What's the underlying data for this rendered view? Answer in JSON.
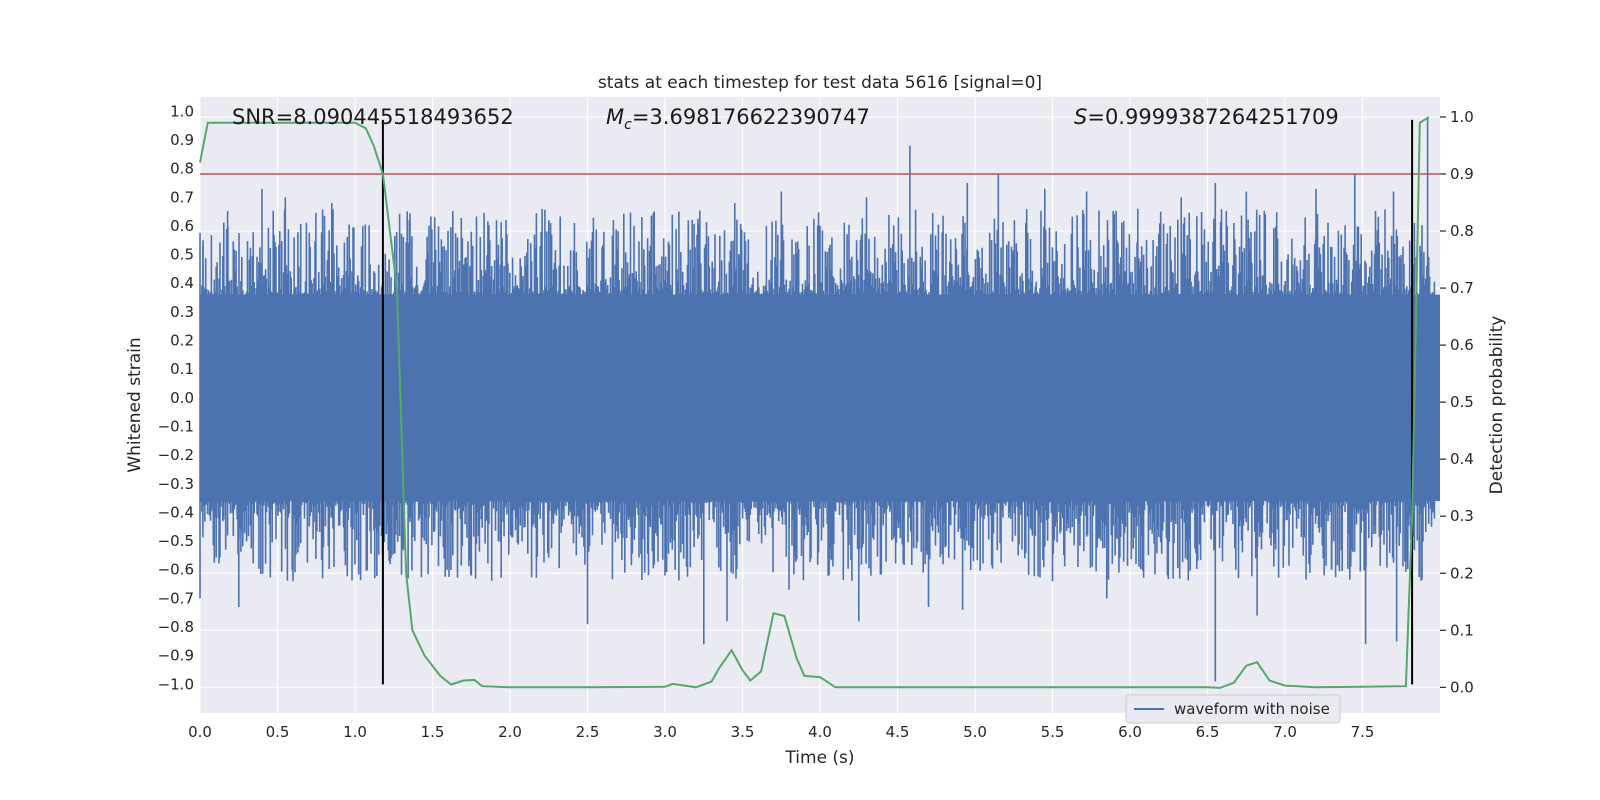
{
  "chart_data": {
    "type": "line",
    "title": "stats at each timestep for test data 5616 [signal=0]",
    "xlabel": "Time (s)",
    "ylabel": "Whitened strain",
    "y2label": "Detection probability",
    "xlim": [
      0.0,
      8.0
    ],
    "ylim": [
      -1.1,
      1.05
    ],
    "y2lim": [
      -0.045,
      1.035
    ],
    "xticks": [
      "0.0",
      "0.5",
      "1.0",
      "1.5",
      "2.0",
      "2.5",
      "3.0",
      "3.5",
      "4.0",
      "4.5",
      "5.0",
      "5.5",
      "6.0",
      "6.5",
      "7.0",
      "7.5"
    ],
    "yticks": [
      "1.0",
      "0.9",
      "0.8",
      "0.7",
      "0.6",
      "0.5",
      "0.4",
      "0.3",
      "0.2",
      "0.1",
      "0.0",
      "−0.1",
      "−0.2",
      "−0.3",
      "−0.4",
      "−0.5",
      "−0.6",
      "−0.7",
      "−0.8",
      "−0.9",
      "−1.0"
    ],
    "y2ticks": [
      "1.0",
      "0.9",
      "0.8",
      "0.7",
      "0.6",
      "0.5",
      "0.4",
      "0.3",
      "0.2",
      "0.1",
      "0.0"
    ],
    "annotations": {
      "snr": "SNR=8.090445518493652",
      "mc_symbol": "M",
      "mc_sub": "c",
      "mc_value": "=3.698176622390747",
      "s_symbol": "S",
      "s_value": "=0.9999387264251709"
    },
    "threshold": {
      "value": 0.9,
      "axis": "right",
      "color": "#c44e52"
    },
    "vlines": {
      "x": [
        1.18,
        7.82
      ],
      "ymin": -1.0,
      "ymax": 0.97,
      "color": "#000000"
    },
    "waveform": {
      "name": "waveform with noise",
      "color": "#4c72b0",
      "band_abs": 0.36,
      "upper_peaks": [
        [
          0.02,
          0.55
        ],
        [
          0.18,
          0.6
        ],
        [
          0.4,
          0.73
        ],
        [
          0.55,
          0.7
        ],
        [
          0.85,
          0.68
        ],
        [
          1.05,
          0.6
        ],
        [
          1.35,
          0.62
        ],
        [
          1.75,
          0.58
        ],
        [
          2.25,
          0.62
        ],
        [
          2.8,
          0.6
        ],
        [
          3.15,
          0.62
        ],
        [
          3.45,
          0.68
        ],
        [
          3.75,
          0.72
        ],
        [
          4.0,
          0.6
        ],
        [
          4.3,
          0.7
        ],
        [
          4.58,
          0.88
        ],
        [
          4.95,
          0.75
        ],
        [
          5.15,
          0.78
        ],
        [
          5.45,
          0.73
        ],
        [
          5.72,
          0.72
        ],
        [
          6.05,
          0.66
        ],
        [
          6.33,
          0.7
        ],
        [
          6.55,
          0.75
        ],
        [
          6.75,
          0.72
        ],
        [
          7.2,
          0.73
        ],
        [
          7.45,
          0.78
        ],
        [
          7.7,
          0.72
        ],
        [
          7.92,
          0.98
        ]
      ],
      "lower_peaks": [
        [
          0.0,
          -0.7
        ],
        [
          0.25,
          -0.73
        ],
        [
          0.6,
          -0.64
        ],
        [
          1.18,
          -0.73
        ],
        [
          1.75,
          -0.62
        ],
        [
          2.5,
          -0.79
        ],
        [
          3.0,
          -0.62
        ],
        [
          3.25,
          -0.86
        ],
        [
          3.4,
          -0.78
        ],
        [
          3.8,
          -0.67
        ],
        [
          4.25,
          -0.78
        ],
        [
          4.7,
          -0.73
        ],
        [
          4.92,
          -0.74
        ],
        [
          5.5,
          -0.64
        ],
        [
          5.85,
          -0.7
        ],
        [
          6.55,
          -0.99
        ],
        [
          6.7,
          -0.63
        ],
        [
          6.82,
          -0.76
        ],
        [
          7.3,
          -0.6
        ],
        [
          7.52,
          -0.86
        ],
        [
          7.72,
          -0.85
        ],
        [
          7.82,
          -0.81
        ]
      ]
    },
    "probability": {
      "name": "detection probability",
      "color": "#55a868",
      "x": [
        0.0,
        0.05,
        0.3,
        0.6,
        0.8,
        1.0,
        1.07,
        1.12,
        1.18,
        1.27,
        1.33,
        1.37,
        1.45,
        1.55,
        1.62,
        1.7,
        1.77,
        1.82,
        2.0,
        2.5,
        3.0,
        3.05,
        3.2,
        3.3,
        3.35,
        3.43,
        3.5,
        3.55,
        3.62,
        3.7,
        3.77,
        3.85,
        3.9,
        4.0,
        4.1,
        4.4,
        5.0,
        5.5,
        6.0,
        6.5,
        6.58,
        6.67,
        6.75,
        6.82,
        6.9,
        7.0,
        7.2,
        7.5,
        7.78,
        7.82,
        7.87,
        7.93
      ],
      "y": [
        0.92,
        0.99,
        0.99,
        0.99,
        0.99,
        0.99,
        0.98,
        0.95,
        0.9,
        0.7,
        0.2,
        0.1,
        0.055,
        0.02,
        0.005,
        0.012,
        0.013,
        0.002,
        0.0,
        0.0,
        0.001,
        0.006,
        0.0,
        0.01,
        0.034,
        0.065,
        0.03,
        0.012,
        0.028,
        0.13,
        0.125,
        0.05,
        0.02,
        0.018,
        0.0,
        0.0,
        0.0,
        0.0,
        0.0,
        0.0,
        -0.001,
        0.008,
        0.038,
        0.044,
        0.012,
        0.003,
        0.0,
        0.001,
        0.002,
        0.3,
        0.99,
        1.0
      ]
    },
    "legend": {
      "label": "waveform with noise",
      "position": "bottom-right"
    }
  }
}
